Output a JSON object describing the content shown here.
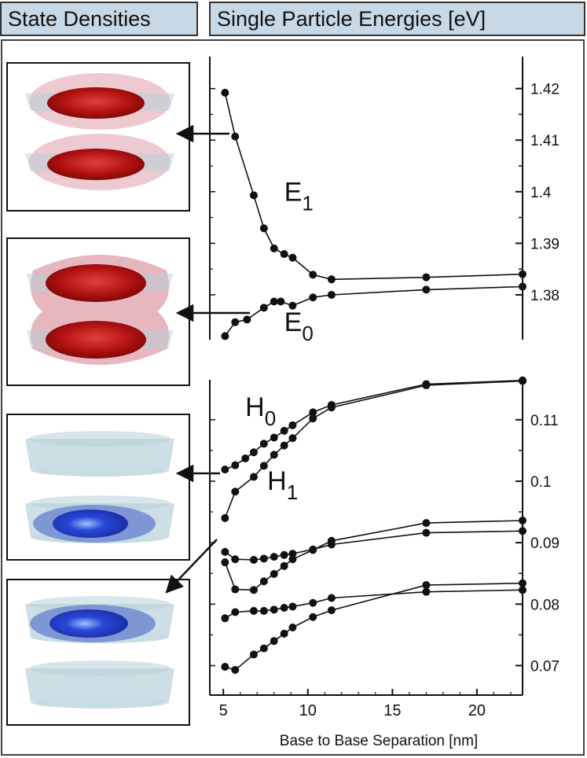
{
  "headers": {
    "left": "State Densities",
    "right": "Single Particle Energies [eV]"
  },
  "colors": {
    "header_bg": "#c8d8e4",
    "electron_density": "#b01010",
    "hole_density": "#2040d0",
    "envelope": "#a8c8d4"
  },
  "chart_data": {
    "type": "line",
    "xlabel": "Base to Base Separation [nm]",
    "x_ticks": [
      "5",
      "10",
      "15",
      "20"
    ],
    "xlim": [
      4.2,
      22.7
    ],
    "panels": [
      {
        "id": "electron",
        "ylim": [
          1.3713,
          1.4262
        ],
        "y_ticks": [
          "1.42",
          "1.41",
          "1.4",
          "1.39",
          "1.38"
        ],
        "series": [
          {
            "name": "E1",
            "x": [
              5.1,
              5.7,
              6.8,
              7.4,
              8.0,
              8.6,
              9.1,
              10.3,
              11.4,
              17.0,
              22.7
            ],
            "y": [
              1.4192,
              1.4107,
              1.3993,
              1.3929,
              1.389,
              1.3879,
              1.3872,
              1.3839,
              1.383,
              1.3834,
              1.384
            ]
          },
          {
            "name": "E0",
            "x": [
              5.1,
              5.7,
              6.4,
              7.4,
              8.0,
              8.4,
              9.1,
              10.3,
              11.4,
              17.0,
              22.7
            ],
            "y": [
              1.372,
              1.3747,
              1.3752,
              1.3775,
              1.3787,
              1.3787,
              1.3779,
              1.3795,
              1.38,
              1.381,
              1.3816
            ]
          }
        ],
        "labels": [
          {
            "main": "E",
            "sub": "1",
            "x": 8.6,
            "y": 1.3982
          },
          {
            "main": "E",
            "sub": "0",
            "x": 8.6,
            "y": 1.373
          }
        ]
      },
      {
        "id": "hole",
        "ylim": [
          0.0652,
          0.1165
        ],
        "y_ticks": [
          "0.11",
          "0.1",
          "0.09",
          "0.08",
          "0.07"
        ],
        "series": [
          {
            "name": "H0",
            "x": [
              5.1,
              5.7,
              6.3,
              6.8,
              7.4,
              8.0,
              8.6,
              9.1,
              10.3,
              11.4,
              17.0,
              22.7
            ],
            "y": [
              0.1019,
              0.1026,
              0.1037,
              0.1047,
              0.1061,
              0.1071,
              0.1082,
              0.1091,
              0.1112,
              0.1124,
              0.1158,
              0.1164
            ]
          },
          {
            "name": "H1",
            "x": [
              5.1,
              5.7,
              6.8,
              7.4,
              8.0,
              8.6,
              9.1,
              10.3,
              11.4,
              17.0,
              22.7
            ],
            "y": [
              0.094,
              0.0983,
              0.1007,
              0.1025,
              0.1043,
              0.1058,
              0.107,
              0.1102,
              0.112,
              0.1156,
              0.1163
            ]
          },
          {
            "name": "",
            "x": [
              5.1,
              5.7,
              6.8,
              7.4,
              8.0,
              8.6,
              9.1,
              10.3,
              11.4,
              17.0,
              22.7
            ],
            "y": [
              0.0885,
              0.0873,
              0.0872,
              0.0874,
              0.0877,
              0.088,
              0.0882,
              0.0889,
              0.0897,
              0.0916,
              0.0919
            ]
          },
          {
            "name": "",
            "x": [
              5.1,
              5.7,
              6.8,
              7.4,
              8.0,
              8.6,
              9.1,
              10.3,
              11.4,
              17.0,
              22.7
            ],
            "y": [
              0.0868,
              0.0824,
              0.0823,
              0.0837,
              0.0849,
              0.0862,
              0.0873,
              0.0888,
              0.0903,
              0.0932,
              0.0936
            ]
          },
          {
            "name": "",
            "x": [
              5.1,
              5.7,
              6.8,
              7.4,
              8.0,
              8.6,
              9.1,
              10.3,
              11.4,
              17.0,
              22.7
            ],
            "y": [
              0.0777,
              0.0787,
              0.0789,
              0.0789,
              0.0791,
              0.0794,
              0.0796,
              0.0802,
              0.081,
              0.082,
              0.0823
            ]
          },
          {
            "name": "",
            "x": [
              5.1,
              5.7,
              6.8,
              7.4,
              8.0,
              8.6,
              9.1,
              10.3,
              11.4,
              17.0,
              22.7
            ],
            "y": [
              0.0698,
              0.0693,
              0.0718,
              0.0728,
              0.074,
              0.0752,
              0.0762,
              0.0779,
              0.079,
              0.0831,
              0.0834
            ]
          }
        ],
        "labels": [
          {
            "main": "H",
            "sub": "0",
            "x": 6.3,
            "y": 0.1106
          },
          {
            "main": "H",
            "sub": "1",
            "x": 7.6,
            "y": 0.0986
          }
        ]
      }
    ]
  }
}
